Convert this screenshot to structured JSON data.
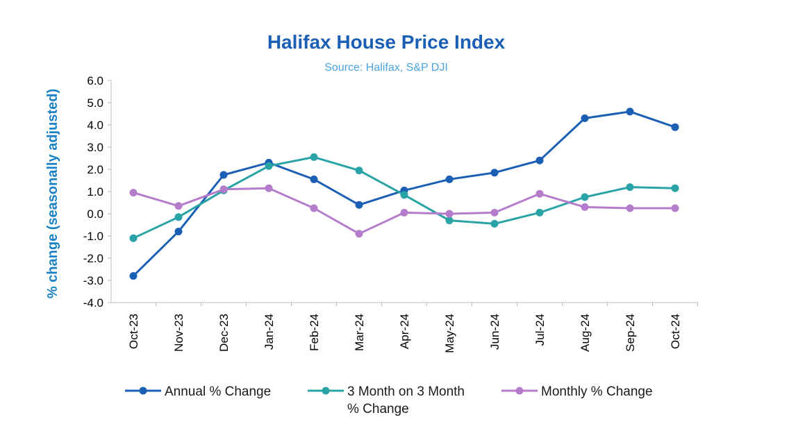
{
  "chart_data": {
    "type": "line",
    "title": "Halifax House Price Index",
    "subtitle": "Source: Halifax, S&P DJI",
    "xlabel": "",
    "ylabel": "% change (seasonally adjusted)",
    "ylim": [
      -4.0,
      6.0
    ],
    "yticks": [
      6.0,
      5.0,
      4.0,
      3.0,
      2.0,
      1.0,
      0.0,
      -1.0,
      -2.0,
      -3.0,
      -4.0
    ],
    "ytick_labels": [
      "6.0",
      "5.0",
      "4.0",
      "3.0",
      "2.0",
      "1.0",
      "0.0",
      "-1.0",
      "-2.0",
      "-3.0",
      "-4.0"
    ],
    "categories": [
      "Oct-23",
      "Nov-23",
      "Dec-23",
      "Jan-24",
      "Feb-24",
      "Mar-24",
      "Apr-24",
      "May-24",
      "Jun-24",
      "Jul-24",
      "Aug-24",
      "Sep-24",
      "Oct-24"
    ],
    "grid": false,
    "legend_position": "bottom",
    "series": [
      {
        "name": "Annual % Change",
        "legend_lines": [
          "Annual % Change"
        ],
        "color": "#1a5fb4",
        "values": [
          -2.8,
          -0.8,
          1.75,
          2.3,
          1.55,
          0.4,
          1.05,
          1.55,
          1.85,
          2.4,
          4.3,
          4.6,
          3.9
        ]
      },
      {
        "name": "3 Month on 3 Month % Change",
        "legend_lines": [
          "3 Month on 3 Month",
          "% Change"
        ],
        "color": "#2aa3a7",
        "values": [
          -1.1,
          -0.15,
          1.05,
          2.15,
          2.55,
          1.95,
          0.85,
          -0.3,
          -0.45,
          0.05,
          0.75,
          1.2,
          1.15
        ]
      },
      {
        "name": "Monthly % Change",
        "legend_lines": [
          "Monthly % Change"
        ],
        "color": "#b57ccc",
        "values": [
          0.95,
          0.35,
          1.1,
          1.15,
          0.25,
          -0.9,
          0.05,
          0.0,
          0.05,
          0.9,
          0.3,
          0.25,
          0.25
        ]
      }
    ]
  },
  "colors": {
    "title": "#1a5fb4",
    "subtitle": "#4aa3df",
    "ylabel": "#1a82c4",
    "axis": "#bfbfbf"
  }
}
